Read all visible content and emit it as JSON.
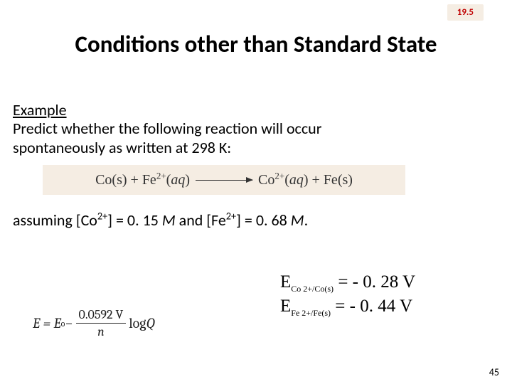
{
  "badge": {
    "label": "19.5",
    "bg": "#f5ede3",
    "color": "#c00000"
  },
  "title": "Conditions other than Standard State",
  "example_label": "Example",
  "prompt_line1": "Predict whether the following reaction will occur",
  "prompt_line2": "spontaneously as written at 298 K:",
  "reaction": {
    "lhs_a": "Co(s)",
    "lhs_b_species": "Fe",
    "lhs_b_charge": "2+",
    "lhs_b_phase": "aq",
    "rhs_a_species": "Co",
    "rhs_a_charge": "2+",
    "rhs_a_phase": "aq",
    "rhs_b": "Fe(s)"
  },
  "assuming": {
    "prefix": "assuming [Co",
    "co_sup": "2+",
    "mid1": "] = 0. 15 ",
    "m1": "M",
    "mid2": " and [Fe",
    "fe_sup": "2+",
    "mid3": "] = 0. 68 ",
    "m2": "M",
    "suffix": "."
  },
  "potentials": {
    "row1": {
      "sub": "Co 2+/Co(s)",
      "val": " =  - 0. 28 V"
    },
    "row2": {
      "sub": "Fe 2+/Fe(s)",
      "val": " =  - 0. 44 V"
    }
  },
  "nernst": {
    "lhs": "E = E",
    "deg": "o",
    "minus": " − ",
    "num": "0.0592 V",
    "den": "n",
    "log": "log",
    "Q": "Q"
  },
  "page": "45"
}
